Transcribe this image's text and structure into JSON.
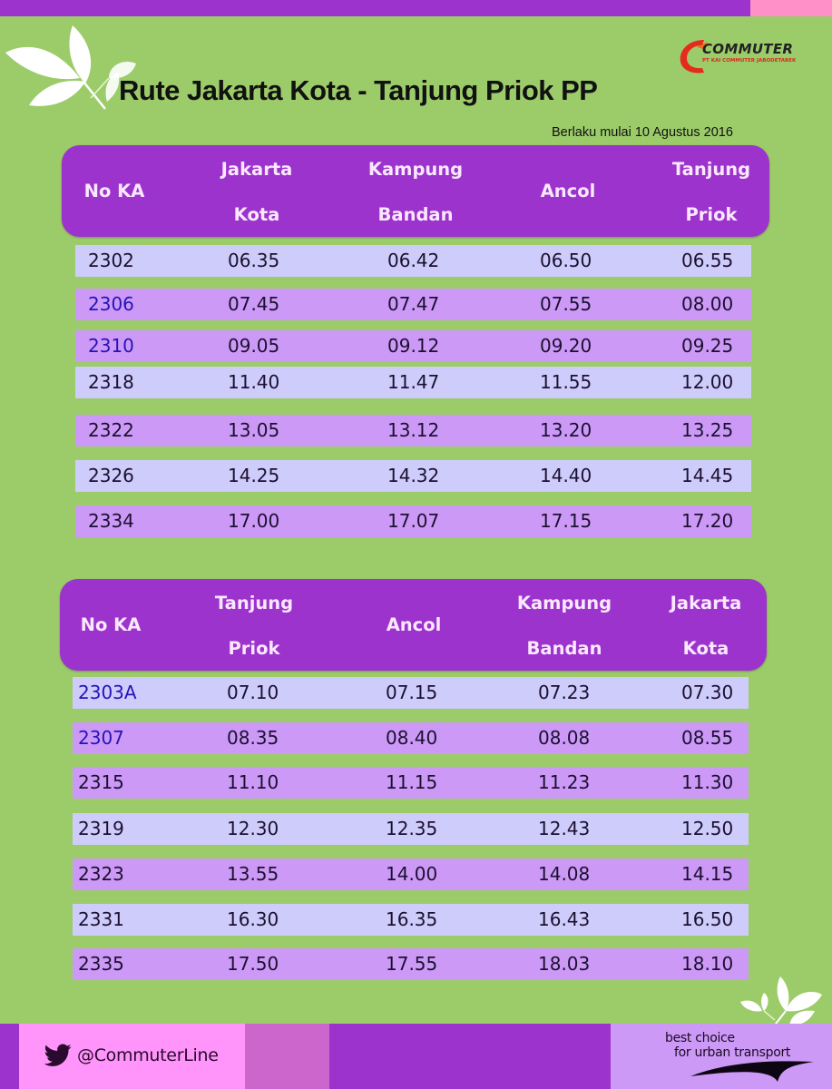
{
  "title": "Rute Jakarta Kota - Tanjung Priok PP",
  "valid_from": "Berlaku mulai 10 Agustus 2016",
  "logo": {
    "name": "COMMUTER",
    "subtitle": "PT KAI COMMUTER JABODETABEK",
    "icon": "commuter-logo-icon"
  },
  "colors": {
    "background": "#9ccc6a",
    "header_purple": "#9b33cc",
    "row_light": "#cdccfa",
    "row_dark": "#cc99f7",
    "highlight_train": "#2414b8",
    "top_pink": "#ff90c8",
    "footer_pink": "#ff95fa",
    "footer_mauve": "#cc66cc",
    "footer_lavender": "#cc99f7"
  },
  "tables": [
    {
      "direction": "Jakarta Kota - Tanjung Priok",
      "headers": [
        {
          "l1": "No KA",
          "l2": ""
        },
        {
          "l1": "Jakarta",
          "l2": "Kota"
        },
        {
          "l1": "Kampung",
          "l2": "Bandan"
        },
        {
          "l1": "Ancol",
          "l2": ""
        },
        {
          "l1": "Tanjung",
          "l2": "Priok"
        }
      ],
      "rows": [
        {
          "no": "2302",
          "t": [
            "06.35",
            "06.42",
            "06.50",
            "06.55"
          ],
          "style": "light",
          "highlight": false
        },
        {
          "no": "2306",
          "t": [
            "07.45",
            "07.47",
            "07.55",
            "08.00"
          ],
          "style": "dark",
          "highlight": true
        },
        {
          "no": "2310",
          "t": [
            "09.05",
            "09.12",
            "09.20",
            "09.25"
          ],
          "style": "dark",
          "highlight": true
        },
        {
          "no": "2318",
          "t": [
            "11.40",
            "11.47",
            "11.55",
            "12.00"
          ],
          "style": "light",
          "highlight": false
        },
        {
          "no": "2322",
          "t": [
            "13.05",
            "13.12",
            "13.20",
            "13.25"
          ],
          "style": "dark",
          "highlight": false
        },
        {
          "no": "2326",
          "t": [
            "14.25",
            "14.32",
            "14.40",
            "14.45"
          ],
          "style": "light",
          "highlight": false
        },
        {
          "no": "2334",
          "t": [
            "17.00",
            "17.07",
            "17.15",
            "17.20"
          ],
          "style": "dark",
          "highlight": false
        }
      ]
    },
    {
      "direction": "Tanjung Priok - Jakarta Kota",
      "headers": [
        {
          "l1": "No KA",
          "l2": ""
        },
        {
          "l1": "Tanjung",
          "l2": "Priok"
        },
        {
          "l1": "Ancol",
          "l2": ""
        },
        {
          "l1": "Kampung",
          "l2": "Bandan"
        },
        {
          "l1": "Jakarta",
          "l2": "Kota"
        }
      ],
      "rows": [
        {
          "no": "2303A",
          "t": [
            "07.10",
            "07.15",
            "07.23",
            "07.30"
          ],
          "style": "light",
          "highlight": true
        },
        {
          "no": "2307",
          "t": [
            "08.35",
            "08.40",
            "08.08",
            "08.55"
          ],
          "style": "dark",
          "highlight": true
        },
        {
          "no": "2315",
          "t": [
            "11.10",
            "11.15",
            "11.23",
            "11.30"
          ],
          "style": "dark",
          "highlight": false
        },
        {
          "no": "2319",
          "t": [
            "12.30",
            "12.35",
            "12.43",
            "12.50"
          ],
          "style": "light",
          "highlight": false
        },
        {
          "no": "2323",
          "t": [
            "13.55",
            "14.00",
            "14.08",
            "14.15"
          ],
          "style": "dark",
          "highlight": false
        },
        {
          "no": "2331",
          "t": [
            "16.30",
            "16.35",
            "16.43",
            "16.50"
          ],
          "style": "light",
          "highlight": false
        },
        {
          "no": "2335",
          "t": [
            "17.50",
            "17.55",
            "18.03",
            "18.10"
          ],
          "style": "dark",
          "highlight": false
        }
      ]
    }
  ],
  "footer": {
    "twitter_icon": "twitter-bird-icon",
    "twitter_handle": "@CommuterLine",
    "tagline_line1": "best choice",
    "tagline_line2": "for urban transport"
  }
}
